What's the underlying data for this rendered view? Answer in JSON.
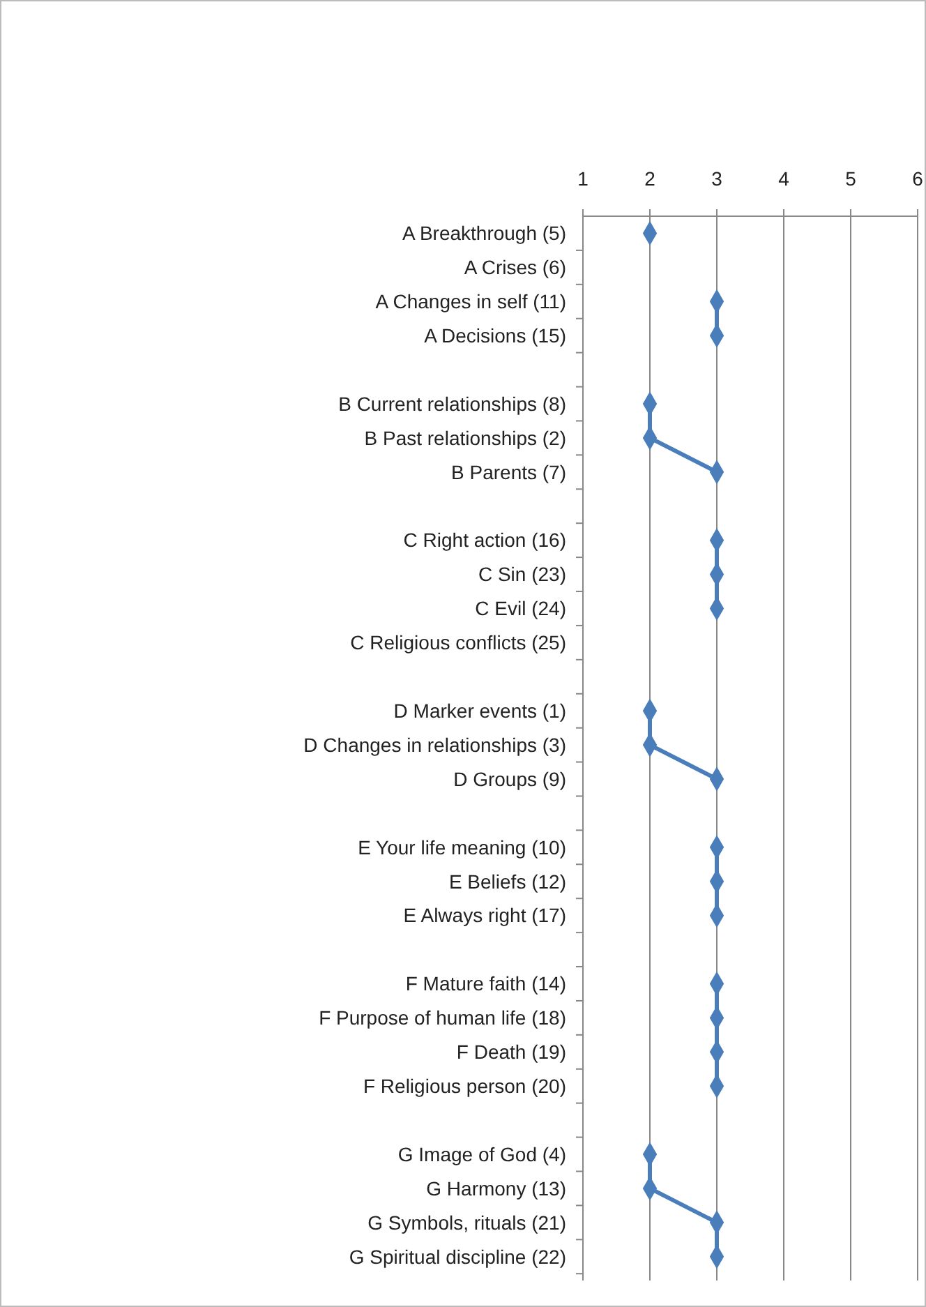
{
  "chart_data": {
    "type": "line",
    "orientation": "horizontal",
    "categories": [
      "A Breakthrough (5)",
      "A Crises (6)",
      "A Changes in self (11)",
      "A Decisions (15)",
      null,
      "B Current relationships (8)",
      "B Past relationships (2)",
      "B Parents (7)",
      null,
      "C Right action (16)",
      "C Sin (23)",
      "C Evil (24)",
      "C Religious conflicts (25)",
      null,
      "D Marker events (1)",
      "D Changes in relationships  (3)",
      "D Groups (9)",
      null,
      "E Your life meaning (10)",
      "E Beliefs (12)",
      "E Always right (17)",
      null,
      "F Mature faith (14)",
      "F Purpose of human life (18)",
      "F Death (19)",
      "F Religious person (20)",
      null,
      "G Image of God (4)",
      "G Harmony (13)",
      "G Symbols, rituals (21)",
      "G Spiritual discipline (22)"
    ],
    "series": [
      {
        "color": "#4a7ebb",
        "values": [
          2,
          null,
          3,
          3,
          null,
          2,
          2,
          3,
          null,
          3,
          3,
          3,
          null,
          null,
          2,
          2,
          3,
          null,
          3,
          3,
          3,
          null,
          3,
          3,
          3,
          3,
          null,
          2,
          2,
          3,
          3
        ]
      }
    ],
    "xlim": [
      1,
      6
    ],
    "xticks": [
      1,
      2,
      3,
      4,
      5,
      6
    ],
    "grid": "x",
    "marker": "diamond",
    "line_style": "solid"
  }
}
